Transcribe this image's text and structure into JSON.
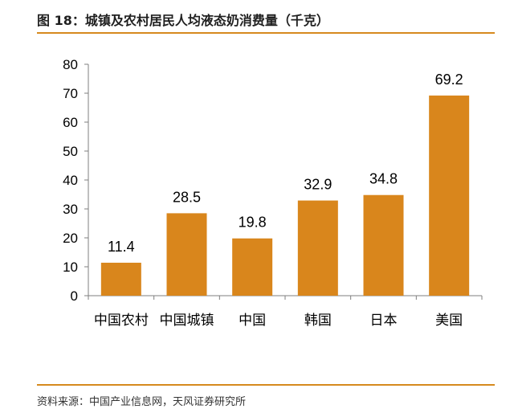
{
  "header": {
    "title": "图 18：城镇及农村居民人均液态奶消费量（千克）"
  },
  "footer": {
    "source": "资料来源：中国产业信息网，天风证券研究所"
  },
  "colors": {
    "bar": "#d9861c",
    "rule": "#d68a1e",
    "axis": "#7f7f7f"
  },
  "chart_data": {
    "type": "bar",
    "title": "图 18：城镇及农村居民人均液态奶消费量（千克）",
    "categories": [
      "中国农村",
      "中国城镇",
      "中国",
      "韩国",
      "日本",
      "美国"
    ],
    "values": [
      11.4,
      28.5,
      19.8,
      32.9,
      34.8,
      69.2
    ],
    "data_labels": [
      "11.4",
      "28.5",
      "19.8",
      "32.9",
      "34.8",
      "69.2"
    ],
    "yticks": [
      "0",
      "10",
      "20",
      "30",
      "40",
      "50",
      "60",
      "70",
      "80"
    ],
    "ylim": [
      0,
      80
    ],
    "grid": false,
    "legend": "none",
    "xlabel": "",
    "ylabel": ""
  }
}
